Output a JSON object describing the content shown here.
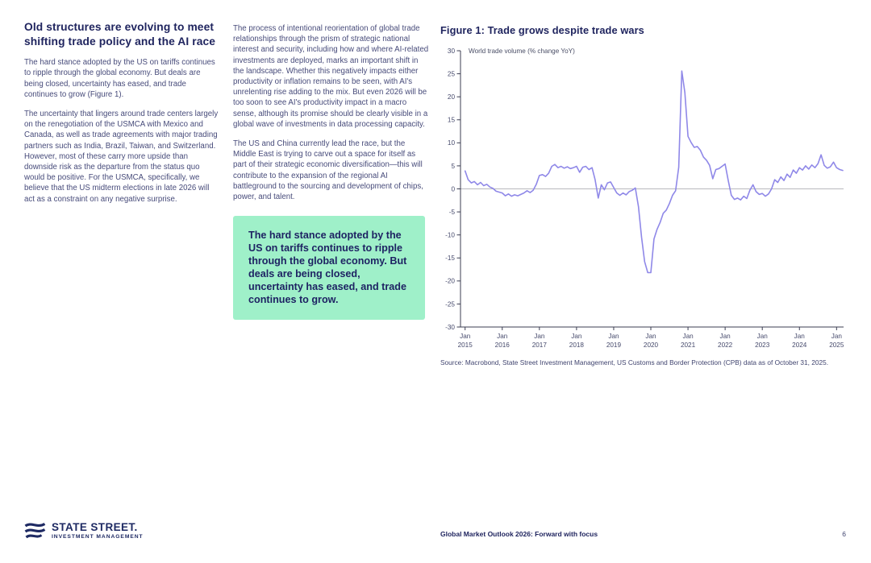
{
  "left_column": {
    "heading": "Old structures are evolving to meet shifting trade policy and the AI race",
    "paragraphs": [
      "The hard stance adopted by the US on tariffs continues to ripple through the global economy. But deals are being closed, uncertainty has eased, and trade continues to grow (Figure 1).",
      "The uncertainty that lingers around trade centers largely on the renegotiation of the USMCA with Mexico and Canada, as well as trade agreements with major trading partners such as India, Brazil, Taiwan, and Switzerland. However, most of these carry more upside than downside risk as the departure from the status quo would be positive. For the USMCA, specifically, we believe that the US midterm elections in late 2026 will act as a constraint on any negative surprise."
    ]
  },
  "middle_column": {
    "paragraphs": [
      "The process of intentional reorientation of global trade relationships through the prism of strategic national interest and security, including how and where AI-related investments are deployed, marks an important shift in the landscape. Whether this negatively impacts either productivity or inflation remains to be seen, with AI's unrelenting rise adding to the mix. But even 2026 will be too soon to see AI's productivity impact in a macro sense, although its promise should be clearly visible in a global wave of investments in data processing capacity.",
      "The US and China currently lead the race, but the Middle East is trying to carve out a space for itself as part of their strategic economic diversification—this will contribute to the expansion of the regional AI battleground to the sourcing and development of chips, power, and talent."
    ],
    "callout": {
      "text": "The hard stance adopted by the US on tariffs continues to ripple through the global economy. But deals are being closed, uncertainty has eased, and trade continues to grow.",
      "background": "#9ff0c9"
    }
  },
  "figure": {
    "title": "Figure 1: Trade grows despite trade wars",
    "source": "Source: Macrobond, State Street Investment Management, US Customs and Border Protection (CPB) data as of October 31, 2025."
  },
  "chart_data": {
    "type": "line",
    "title": "Figure 1: Trade grows despite trade wars",
    "series_label": "World trade volume (% change YoY)",
    "frequency": "monthly",
    "start": "Jan 2015",
    "end": "Mar 2025",
    "ylim": [
      -30,
      30
    ],
    "ytick_step": 5,
    "x_tick_month": "Jan",
    "x_tick_years": [
      "2015",
      "2016",
      "2017",
      "2018",
      "2019",
      "2020",
      "2021",
      "2022",
      "2023",
      "2024",
      "2025"
    ],
    "line_color": "#8f88e8",
    "zero_line": true,
    "values": [
      3.9,
      2.0,
      1.3,
      1.6,
      0.9,
      1.4,
      0.7,
      1.0,
      0.4,
      0.1,
      -0.5,
      -0.7,
      -0.9,
      -1.5,
      -1.1,
      -1.6,
      -1.3,
      -1.5,
      -1.2,
      -0.9,
      -0.4,
      -0.8,
      -0.3,
      1.0,
      2.9,
      3.1,
      2.7,
      3.4,
      4.9,
      5.3,
      4.6,
      4.9,
      4.5,
      4.8,
      4.4,
      4.6,
      4.9,
      3.6,
      4.7,
      4.9,
      4.2,
      4.6,
      2.0,
      -2.0,
      0.9,
      -0.2,
      1.3,
      1.5,
      0.3,
      -0.9,
      -1.4,
      -0.9,
      -1.3,
      -0.6,
      -0.3,
      0.2,
      -3.9,
      -10.5,
      -15.8,
      -18.2,
      -18.2,
      -10.9,
      -8.8,
      -7.3,
      -5.3,
      -4.6,
      -3.2,
      -1.4,
      -0.4,
      4.7,
      25.6,
      20.9,
      11.4,
      10.1,
      9.0,
      9.2,
      8.4,
      6.9,
      6.2,
      5.1,
      2.2,
      4.2,
      4.4,
      4.9,
      5.4,
      1.8,
      -1.4,
      -2.3,
      -2.0,
      -2.4,
      -1.6,
      -2.1,
      -0.3,
      0.9,
      -0.6,
      -1.2,
      -1.0,
      -1.6,
      -1.1,
      0.0,
      2.0,
      1.4,
      2.6,
      1.8,
      3.2,
      2.5,
      4.1,
      3.4,
      4.6,
      4.1,
      5.0,
      4.3,
      5.2,
      4.6,
      5.5,
      7.4,
      5.1,
      4.5,
      4.8,
      5.8,
      4.6,
      4.2,
      4.0
    ]
  },
  "footer": {
    "logo_primary": "STATE STREET.",
    "logo_secondary": "INVESTMENT MANAGEMENT",
    "report_title": "Global Market Outlook 2026: Forward with focus",
    "page_number": "6"
  },
  "colors": {
    "heading_navy": "#20255f",
    "body_text": "#474b7a",
    "accent_green": "#9ff0c9",
    "line_purple": "#8f88e8",
    "zero_line_gray": "#b9b9bd"
  }
}
